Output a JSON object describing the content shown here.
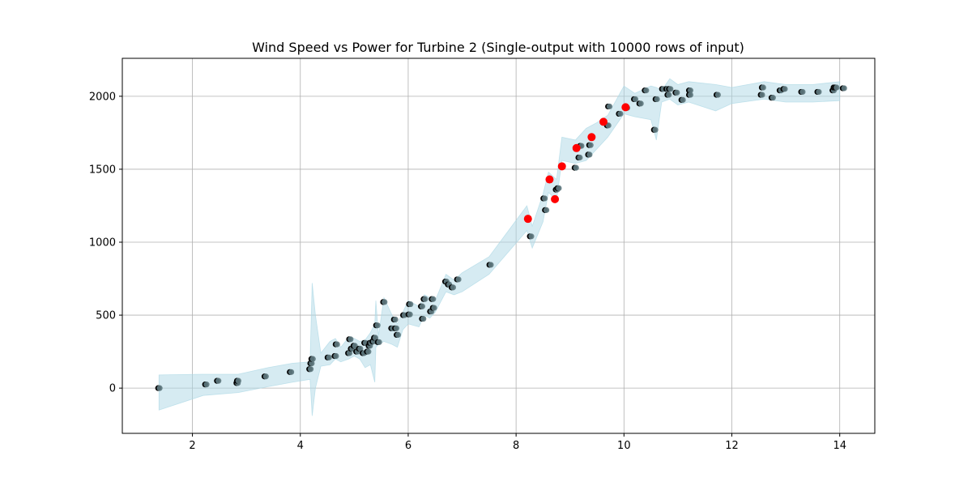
{
  "chart_data": {
    "type": "scatter",
    "title": "Wind Speed vs Power for Turbine 2 (Single-output with 10000 rows of input)",
    "xlabel": "",
    "ylabel": "",
    "xlim": [
      0.7,
      14.65
    ],
    "ylim": [
      -310,
      2260
    ],
    "xticks": [
      2,
      4,
      6,
      8,
      10,
      12,
      14
    ],
    "yticks": [
      0,
      500,
      1000,
      1500,
      2000
    ],
    "grid": true,
    "colors": {
      "band": "#add8e6",
      "observed": "#000000",
      "predicted": "#5f7a80",
      "highlight": "#ff0000"
    },
    "band": {
      "x": [
        1.38,
        2.2,
        2.85,
        3.4,
        3.85,
        4.18,
        4.22,
        4.28,
        4.38,
        4.55,
        4.65,
        4.75,
        4.9,
        5.0,
        5.1,
        5.2,
        5.3,
        5.38,
        5.4,
        5.45,
        5.55,
        5.7,
        5.8,
        5.9,
        6.0,
        6.2,
        6.3,
        6.4,
        6.5,
        6.7,
        6.85,
        7.0,
        7.5,
        8.2,
        8.3,
        8.5,
        8.6,
        8.75,
        8.85,
        9.1,
        9.3,
        9.5,
        9.7,
        10.0,
        10.2,
        10.5,
        10.6,
        10.7,
        10.85,
        11.0,
        11.2,
        11.7,
        12.0,
        12.6,
        13.0,
        13.5,
        14.0
      ],
      "upper": [
        90,
        95,
        95,
        140,
        170,
        180,
        720,
        500,
        240,
        320,
        340,
        280,
        350,
        340,
        320,
        330,
        380,
        440,
        600,
        360,
        620,
        500,
        440,
        520,
        600,
        560,
        640,
        620,
        600,
        780,
        740,
        790,
        900,
        1250,
        1110,
        1330,
        1480,
        1430,
        1720,
        1700,
        1780,
        1820,
        1870,
        2070,
        2020,
        2070,
        2060,
        2040,
        2120,
        2080,
        2100,
        2080,
        2060,
        2100,
        2080,
        2080,
        2100
      ],
      "lower": [
        -150,
        -50,
        -30,
        10,
        40,
        60,
        -190,
        0,
        150,
        160,
        200,
        180,
        200,
        220,
        200,
        140,
        160,
        40,
        280,
        300,
        320,
        300,
        280,
        400,
        440,
        420,
        500,
        480,
        520,
        660,
        640,
        660,
        780,
        1080,
        960,
        1140,
        1340,
        1290,
        1560,
        1540,
        1560,
        1640,
        1720,
        1880,
        1860,
        1840,
        1700,
        1960,
        1980,
        1940,
        1960,
        1900,
        1950,
        1980,
        1960,
        1960,
        1970
      ]
    },
    "series": [
      {
        "role": "observed",
        "x": [
          1.38,
          2.25,
          2.47,
          2.83,
          2.84,
          3.35,
          3.82,
          4.18,
          4.2,
          4.22,
          4.52,
          4.65,
          4.67,
          4.9,
          4.92,
          4.95,
          5.0,
          5.05,
          5.1,
          5.17,
          5.2,
          5.25,
          5.28,
          5.3,
          5.35,
          5.38,
          5.42,
          5.45,
          5.55,
          5.7,
          5.75,
          5.77,
          5.8,
          5.92,
          6.02,
          6.03,
          6.25,
          6.27,
          6.3,
          6.42,
          6.45,
          6.47,
          6.7,
          6.75,
          6.82,
          6.92,
          7.52,
          8.22,
          8.27,
          8.52,
          8.55,
          8.62,
          8.75,
          8.78,
          9.1,
          9.12,
          9.17,
          9.2,
          9.35,
          9.37,
          9.62,
          9.7,
          9.72,
          9.92,
          10.05,
          10.2,
          10.3,
          10.4,
          10.57,
          10.6,
          10.72,
          10.8,
          10.82,
          10.85,
          10.97,
          11.08,
          11.22,
          11.22,
          11.73,
          12.55,
          12.57,
          12.75,
          12.9,
          12.97,
          13.3,
          13.6,
          13.88,
          13.9,
          13.93,
          14.07
        ],
        "y": [
          0,
          25,
          50,
          35,
          50,
          80,
          110,
          130,
          170,
          200,
          210,
          220,
          300,
          240,
          335,
          270,
          290,
          250,
          270,
          240,
          310,
          250,
          290,
          310,
          320,
          345,
          430,
          315,
          590,
          410,
          470,
          410,
          365,
          500,
          505,
          575,
          560,
          475,
          610,
          525,
          610,
          550,
          730,
          710,
          690,
          745,
          845,
          1160,
          1040,
          1300,
          1220,
          1430,
          1360,
          1370,
          1510,
          1640,
          1580,
          1660,
          1600,
          1665,
          1820,
          1800,
          1930,
          1880,
          1920,
          1980,
          1950,
          2040,
          1770,
          1980,
          2050,
          2050,
          2010,
          2050,
          2025,
          1975,
          2040,
          2010,
          2010,
          2010,
          2060,
          1990,
          2040,
          2050,
          2030,
          2030,
          2040,
          2060,
          2060,
          2055
        ]
      },
      {
        "role": "highlighted",
        "x": [
          8.22,
          8.62,
          8.72,
          8.85,
          9.12,
          9.4,
          9.62,
          10.03
        ],
        "y": [
          1160,
          1430,
          1295,
          1520,
          1645,
          1720,
          1825,
          1925
        ]
      }
    ]
  }
}
